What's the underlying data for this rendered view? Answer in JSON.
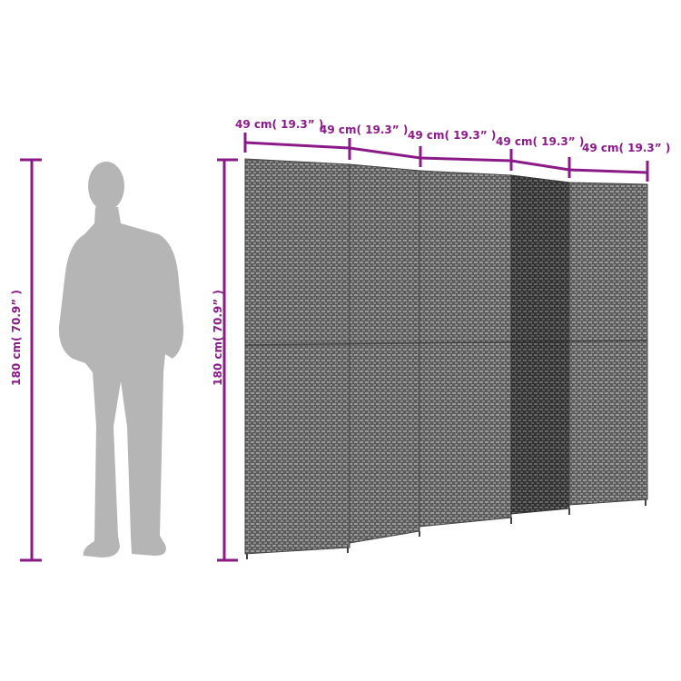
{
  "colors": {
    "dimension": "#8b1a89",
    "silhouette": "#b5b5b5",
    "panel": "#6e6e6e",
    "panel_dark": "#3e3e3e"
  },
  "dimensions": {
    "person_height": "180 cm( 70.9” )",
    "screen_height": "180 cm( 70.9” )",
    "panel_widths": [
      "49 cm( 19.3” )",
      "49 cm( 19.3” )",
      "49 cm( 19.3” )",
      "49 cm( 19.3” )",
      "49 cm( 19.3” )"
    ]
  }
}
